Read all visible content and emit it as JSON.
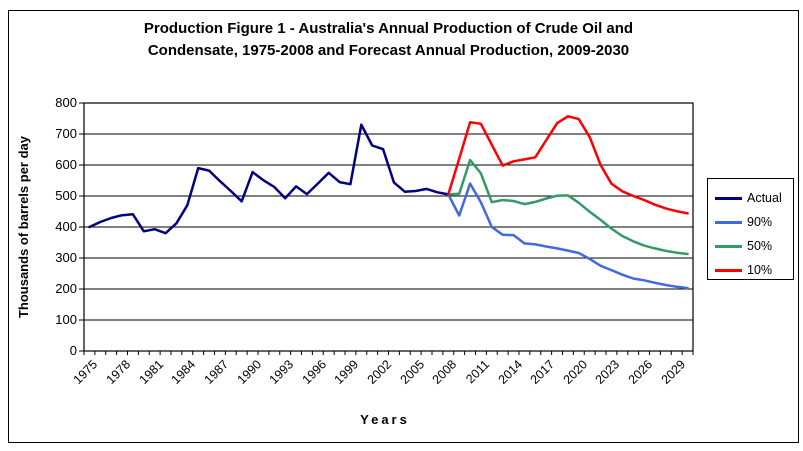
{
  "figure": {
    "title_lines": [
      "Production Figure 1 - Australia's Annual Production of Crude Oil and",
      "Condensate, 1975-2008 and Forecast Annual Production, 2009-2030"
    ]
  },
  "chart_data": {
    "type": "line",
    "title": "Production Figure 1 - Australia's Annual Production of Crude Oil and Condensate, 1975-2008 and Forecast Annual Production, 2009-2030",
    "xlabel": "Years",
    "ylabel": "Thousands of barrels per day",
    "ylim": [
      0,
      800
    ],
    "y_ticks": [
      0,
      100,
      200,
      300,
      400,
      500,
      600,
      700,
      800
    ],
    "x_range": [
      1975,
      2030
    ],
    "x_tick_step": 3,
    "x_tick_labels": [
      "1975",
      "1978",
      "1981",
      "1984",
      "1987",
      "1990",
      "1993",
      "1996",
      "1999",
      "2002",
      "2005",
      "2008",
      "2011",
      "2014",
      "2017",
      "2020",
      "2023",
      "2026",
      "2029"
    ],
    "grid": "horizontal",
    "legend_position": "right",
    "series": [
      {
        "name": "Actual",
        "color": "#000080",
        "start_year": 1975,
        "values": [
          400,
          416,
          429,
          438,
          441,
          386,
          393,
          380,
          412,
          470,
          590,
          582,
          548,
          516,
          483,
          577,
          551,
          529,
          493,
          531,
          506,
          540,
          575,
          545,
          538,
          730,
          663,
          651,
          544,
          514,
          516,
          523,
          512,
          505
        ]
      },
      {
        "name": "90%",
        "color": "#4169E1",
        "start_year": 2008,
        "values": [
          505,
          437,
          540,
          480,
          400,
          375,
          374,
          347,
          344,
          337,
          331,
          324,
          316,
          297,
          275,
          261,
          246,
          234,
          228,
          220,
          213,
          207,
          203
        ]
      },
      {
        "name": "50%",
        "color": "#339966",
        "start_year": 2008,
        "values": [
          505,
          507,
          616,
          573,
          480,
          487,
          484,
          474,
          481,
          492,
          501,
          502,
          478,
          449,
          423,
          395,
          371,
          354,
          340,
          331,
          323,
          317,
          313
        ]
      },
      {
        "name": "10%",
        "color": "#FF0000",
        "start_year": 2008,
        "values": [
          505,
          620,
          738,
          733,
          665,
          598,
          612,
          618,
          625,
          680,
          735,
          757,
          748,
          690,
          600,
          540,
          515,
          500,
          487,
          472,
          460,
          451,
          444
        ]
      }
    ]
  }
}
